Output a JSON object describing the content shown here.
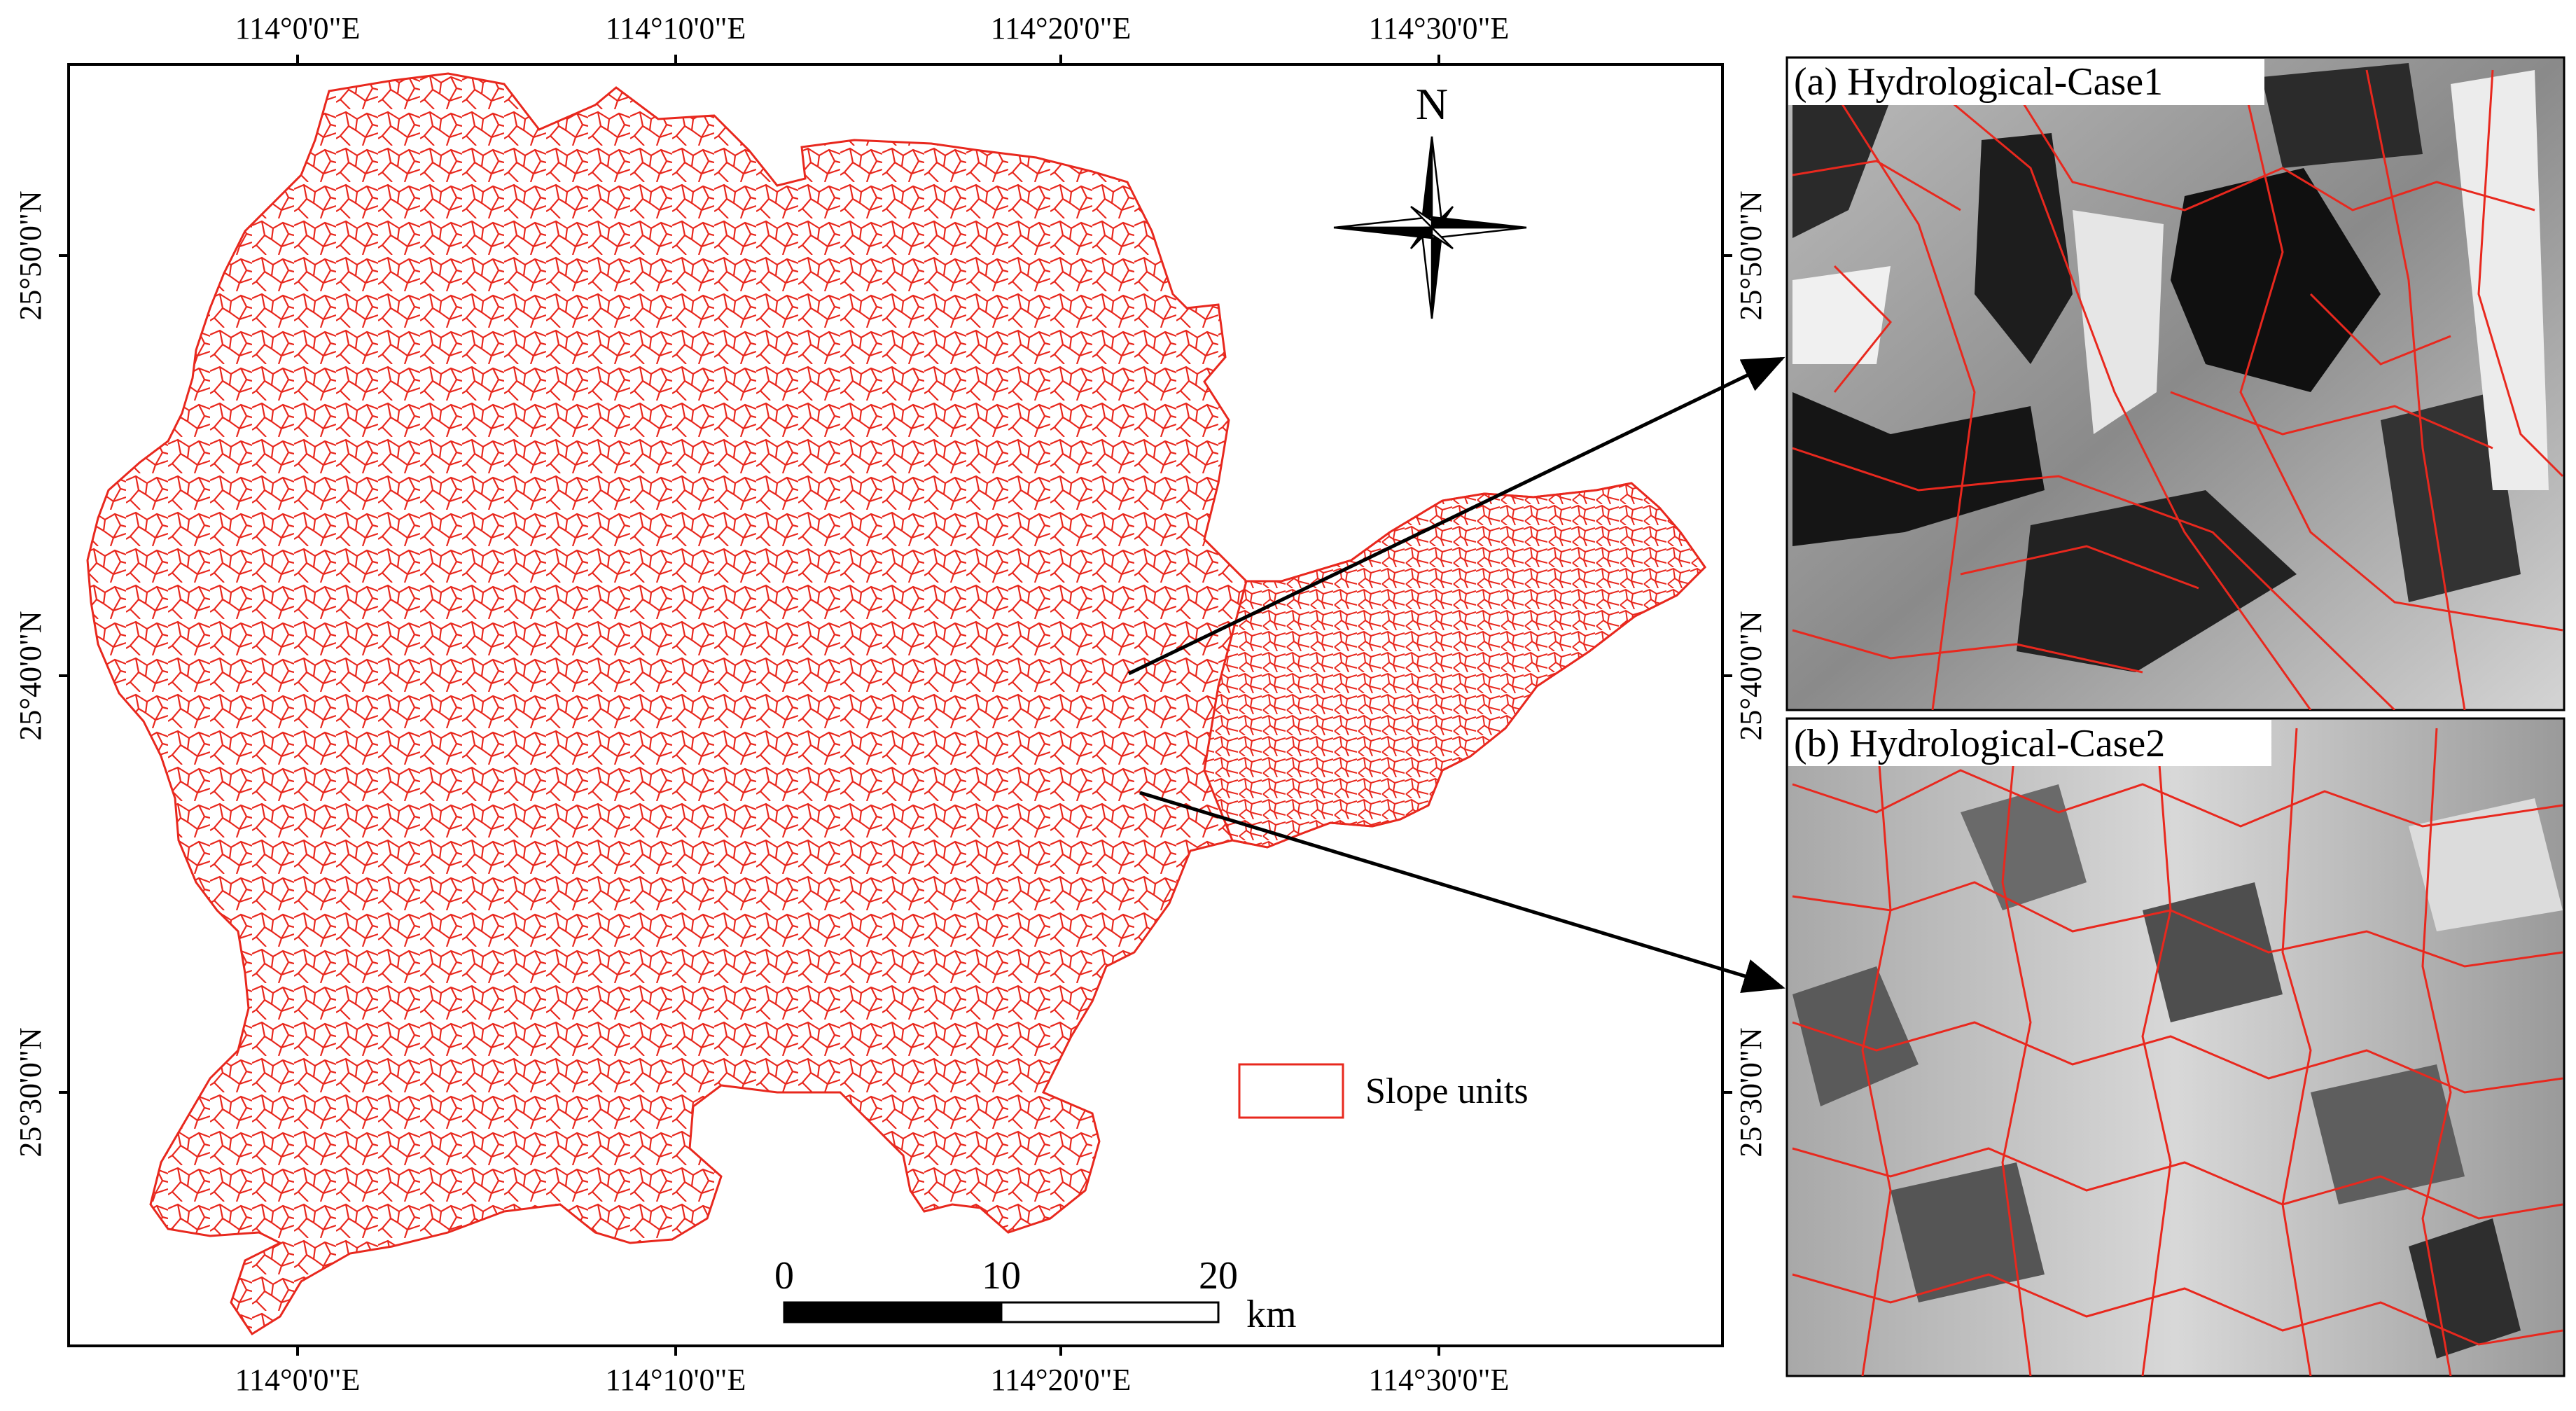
{
  "map": {
    "top_lon_labels": [
      "114°0'0\"E",
      "114°10'0\"E",
      "114°20'0\"E",
      "114°30'0\"E"
    ],
    "bottom_lon_labels": [
      "114°0'0\"E",
      "114°10'0\"E",
      "114°20'0\"E",
      "114°30'0\"E"
    ],
    "left_lat_labels": [
      "25°50'0\"N",
      "25°40'0\"N",
      "25°30'0\"N"
    ],
    "right_lat_labels": [
      "25°50'0\"N",
      "25°40'0\"N",
      "25°30'0\"N"
    ],
    "north_arrow_label": "N",
    "scale_bar": {
      "ticks": [
        "0",
        "10",
        "20"
      ],
      "unit": "km"
    },
    "legend": {
      "label": "Slope units",
      "symbol_color": "#e8281e"
    },
    "colors": {
      "slope_unit_lines": "#e8281e",
      "frame": "#000000",
      "arrows": "#000000"
    }
  },
  "panels": [
    {
      "title": "(a) Hydrological-Case1"
    },
    {
      "title": "(b) Hydrological-Case2"
    }
  ]
}
